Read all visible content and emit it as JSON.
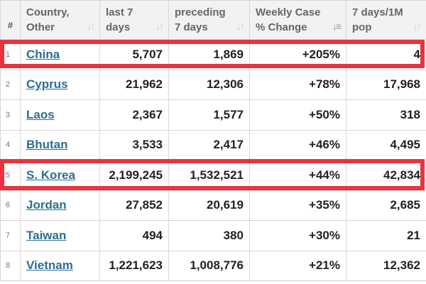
{
  "columns": {
    "num": "#",
    "country": [
      "Country,",
      "Other"
    ],
    "last7": [
      "last 7",
      "days"
    ],
    "preceding7": [
      "preceding",
      "7 days"
    ],
    "change": [
      "Weekly Case",
      "% Change"
    ],
    "pop": [
      "7 days/1M",
      "pop"
    ]
  },
  "icons": {
    "sort": "sort-arrows-icon",
    "sort_active": "sort-descending-icon"
  },
  "colors": {
    "highlight": "#e8343e",
    "link": "#2c6e94",
    "header_bg": "#f2f2f2"
  },
  "rows": [
    {
      "num": "1",
      "country": "China",
      "last7": "5,707",
      "preceding7": "1,869",
      "change": "+205%",
      "pop": "4"
    },
    {
      "num": "2",
      "country": "Cyprus",
      "last7": "21,962",
      "preceding7": "12,306",
      "change": "+78%",
      "pop": "17,968"
    },
    {
      "num": "3",
      "country": "Laos",
      "last7": "2,367",
      "preceding7": "1,577",
      "change": "+50%",
      "pop": "318"
    },
    {
      "num": "4",
      "country": "Bhutan",
      "last7": "3,533",
      "preceding7": "2,417",
      "change": "+46%",
      "pop": "4,495"
    },
    {
      "num": "5",
      "country": "S. Korea",
      "last7": "2,199,245",
      "preceding7": "1,532,521",
      "change": "+44%",
      "pop": "42,834"
    },
    {
      "num": "6",
      "country": "Jordan",
      "last7": "27,852",
      "preceding7": "20,619",
      "change": "+35%",
      "pop": "2,685"
    },
    {
      "num": "7",
      "country": "Taiwan",
      "last7": "494",
      "preceding7": "380",
      "change": "+30%",
      "pop": "21"
    },
    {
      "num": "8",
      "country": "Vietnam",
      "last7": "1,221,623",
      "preceding7": "1,008,776",
      "change": "+21%",
      "pop": "12,362"
    }
  ]
}
